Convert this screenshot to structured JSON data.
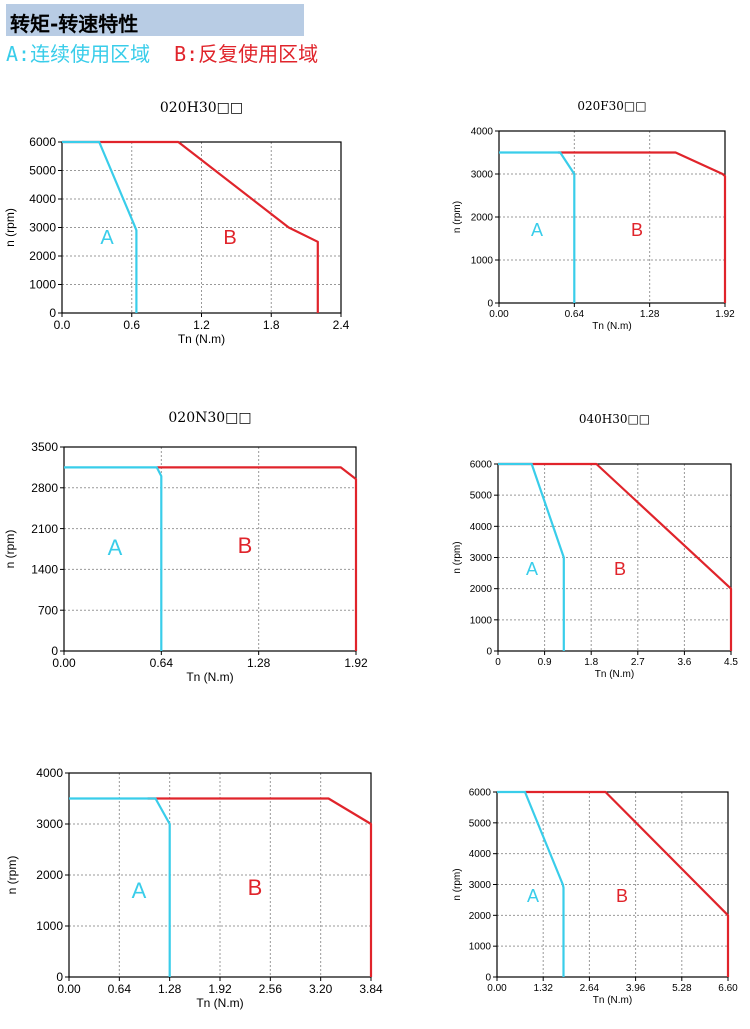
{
  "header": {
    "title": "转矩-转速特性",
    "legend_a": "A:连续使用区域",
    "legend_b": "B:反复使用区域"
  },
  "colors": {
    "continuous": "#39cdea",
    "intermittent": "#e0242b",
    "header_bg": "#b8cce4",
    "grid": "#999999"
  },
  "chart_data": [
    {
      "type": "line",
      "title": "020H30□□",
      "xlabel": "Tn (N.m)",
      "ylabel": "n (rpm)",
      "xlim": [
        0,
        2.4
      ],
      "ylim": [
        0,
        6000
      ],
      "xticks": [
        "0.0",
        "0.6",
        "1.2",
        "1.8",
        "2.4"
      ],
      "yticks": [
        "0",
        "1000",
        "2000",
        "3000",
        "4000",
        "5000",
        "6000"
      ],
      "region_labels": [
        "A",
        "B"
      ],
      "series": [
        {
          "name": "A",
          "x": [
            0,
            0.32,
            0.62,
            0.64,
            0.64
          ],
          "y": [
            6000,
            6000,
            3100,
            2900,
            0
          ]
        },
        {
          "name": "B",
          "x": [
            0,
            1.0,
            1.95,
            2.2,
            2.2
          ],
          "y": [
            6000,
            6000,
            3000,
            2500,
            0
          ]
        }
      ]
    },
    {
      "type": "line",
      "title": "020F30□□",
      "xlabel": "Tn (N.m)",
      "ylabel": "n (rpm)",
      "xlim": [
        0,
        1.92
      ],
      "ylim": [
        0,
        4000
      ],
      "xticks": [
        "0.00",
        "0.64",
        "1.28",
        "1.92"
      ],
      "yticks": [
        "0",
        "1000",
        "2000",
        "3000",
        "4000"
      ],
      "region_labels": [
        "A",
        "B"
      ],
      "series": [
        {
          "name": "A",
          "x": [
            0,
            0.52,
            0.64,
            0.64
          ],
          "y": [
            3500,
            3500,
            3000,
            0
          ]
        },
        {
          "name": "B",
          "x": [
            0.5,
            1.5,
            1.9,
            1.92,
            1.92
          ],
          "y": [
            3500,
            3500,
            3000,
            2950,
            0
          ]
        }
      ]
    },
    {
      "type": "line",
      "title": "020N30□□",
      "xlabel": "Tn (N.m)",
      "ylabel": "n (rpm)",
      "xlim": [
        0,
        1.92
      ],
      "ylim": [
        0,
        3500
      ],
      "xticks": [
        "0.00",
        "0.64",
        "1.28",
        "1.92"
      ],
      "yticks": [
        "0",
        "700",
        "1400",
        "2100",
        "2800",
        "3500"
      ],
      "region_labels": [
        "A",
        "B"
      ],
      "series": [
        {
          "name": "A",
          "x": [
            0,
            0.61,
            0.64,
            0.64
          ],
          "y": [
            3150,
            3150,
            3000,
            0
          ]
        },
        {
          "name": "B",
          "x": [
            0.61,
            1.82,
            1.92,
            1.92
          ],
          "y": [
            3150,
            3150,
            2950,
            0
          ]
        }
      ]
    },
    {
      "type": "line",
      "title": "040H30□□",
      "xlabel": "Tn (N.m)",
      "ylabel": "n (rpm)",
      "xlim": [
        0,
        4.5
      ],
      "ylim": [
        0,
        6000
      ],
      "xticks": [
        "0",
        "0.9",
        "1.8",
        "2.7",
        "3.6",
        "4.5"
      ],
      "yticks": [
        "0",
        "1000",
        "2000",
        "3000",
        "4000",
        "5000",
        "6000"
      ],
      "region_labels": [
        "A",
        "B"
      ],
      "series": [
        {
          "name": "A",
          "x": [
            0,
            0.65,
            1.27,
            1.27
          ],
          "y": [
            6000,
            6000,
            3000,
            0
          ]
        },
        {
          "name": "B",
          "x": [
            0,
            1.9,
            4.5,
            4.5
          ],
          "y": [
            6000,
            6000,
            2000,
            0
          ]
        }
      ]
    },
    {
      "type": "line",
      "title": "",
      "xlabel": "Tn (N.m)",
      "ylabel": "n (rpm)",
      "xlim": [
        0,
        3.84
      ],
      "ylim": [
        0,
        4000
      ],
      "xticks": [
        "0.00",
        "0.64",
        "1.28",
        "1.92",
        "2.56",
        "3.20",
        "3.84"
      ],
      "yticks": [
        "0",
        "1000",
        "2000",
        "3000",
        "4000"
      ],
      "region_labels": [
        "A",
        "B"
      ],
      "series": [
        {
          "name": "A",
          "x": [
            0,
            1.1,
            1.28,
            1.28
          ],
          "y": [
            3500,
            3500,
            3000,
            0
          ]
        },
        {
          "name": "B",
          "x": [
            1.0,
            3.3,
            3.84,
            3.84
          ],
          "y": [
            3500,
            3500,
            3000,
            0
          ]
        }
      ]
    },
    {
      "type": "line",
      "title": "",
      "xlabel": "Tn (N.m)",
      "ylabel": "n (rpm)",
      "xlim": [
        0,
        6.6
      ],
      "ylim": [
        0,
        6000
      ],
      "xticks": [
        "0.00",
        "1.32",
        "2.64",
        "3.96",
        "5.28",
        "6.60"
      ],
      "yticks": [
        "0",
        "1000",
        "2000",
        "3000",
        "4000",
        "5000",
        "6000"
      ],
      "region_labels": [
        "A",
        "B"
      ],
      "series": [
        {
          "name": "A",
          "x": [
            0,
            0.8,
            1.88,
            1.9,
            1.9
          ],
          "y": [
            6000,
            6000,
            3000,
            2900,
            0
          ]
        },
        {
          "name": "B",
          "x": [
            0.8,
            3.1,
            6.6,
            6.6
          ],
          "y": [
            6000,
            6000,
            2000,
            0
          ]
        }
      ]
    }
  ]
}
